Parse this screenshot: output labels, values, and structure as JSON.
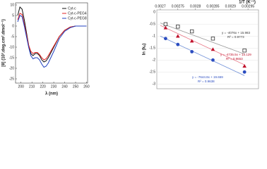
{
  "chart_data": [
    {
      "type": "line",
      "x_label": "λ (nm)",
      "y_label": "[θ] (10³.deg.cm².dmol⁻¹)",
      "x": [
        197,
        199,
        201,
        203,
        205,
        207,
        209,
        211,
        213,
        215,
        217,
        219,
        221,
        223,
        225,
        230,
        235,
        240,
        245,
        250,
        255,
        260
      ],
      "series": [
        {
          "name": "Cyt-c",
          "color": "#111111",
          "values": [
            5,
            9,
            8,
            3,
            -3,
            -9,
            -13,
            -14,
            -13,
            -13,
            -14,
            -16,
            -17,
            -16.5,
            -15,
            -10,
            -5,
            -2,
            -0.5,
            0,
            0,
            0
          ]
        },
        {
          "name": "Cyt-c-PEG4",
          "color": "#e02020",
          "values": [
            3,
            6,
            5.5,
            1,
            -4,
            -9,
            -12,
            -13,
            -12.5,
            -12.5,
            -13.5,
            -15,
            -16,
            -15.5,
            -14,
            -9.5,
            -5,
            -2,
            -0.5,
            0,
            0,
            0
          ]
        },
        {
          "name": "Cyt-c-PEG8",
          "color": "#2040c0",
          "values": [
            2,
            5,
            4.5,
            0,
            -5,
            -10,
            -14,
            -15.5,
            -15,
            -15,
            -16,
            -18,
            -19.5,
            -19,
            -17.5,
            -12,
            -6,
            -2.5,
            -0.8,
            0,
            0,
            0
          ]
        }
      ],
      "xlim": [
        195,
        261
      ],
      "xticks": [
        200,
        210,
        220,
        230,
        240,
        250,
        260
      ],
      "ylim": [
        -27,
        11
      ],
      "yticks": [
        10,
        5,
        0,
        -5,
        -10,
        -15,
        -20,
        -25
      ],
      "legend": "top-right"
    },
    {
      "type": "scatter",
      "x_label": "1/T (K⁻¹)",
      "y_label": "ln (kₒ)",
      "series": [
        {
          "color": "#333333",
          "marker": "square",
          "line_color": "#999999",
          "x": [
            0.002715,
            0.00275,
            0.00279,
            0.00285,
            0.00294
          ],
          "values": [
            -0.5,
            -0.6,
            -0.8,
            -1.1,
            -1.6
          ],
          "trend_x": [
            0.0027,
            0.00294
          ],
          "trend_values": [
            -0.45,
            -1.75
          ],
          "equation": "y = -4076x + 15.983",
          "r2": "R² = 0.9773"
        },
        {
          "color": "#c0102a",
          "marker": "triangle",
          "line_color": "#e87080",
          "x": [
            0.002715,
            0.00275,
            0.00279,
            0.00285,
            0.00294
          ],
          "values": [
            -0.65,
            -1.0,
            -1.2,
            -1.55,
            -2.25
          ],
          "trend_x": [
            0.0027,
            0.00294
          ],
          "trend_values": [
            -0.55,
            -2.2
          ],
          "equation": "y = -4735.5x + 13.129",
          "r2": "R² = 0.9653"
        },
        {
          "color": "#2a4cc0",
          "marker": "circle",
          "line_color": "#7090d8",
          "x": [
            0.002715,
            0.00275,
            0.00279,
            0.00285,
            0.00294
          ],
          "values": [
            -1.1,
            -1.35,
            -1.65,
            -2.0,
            -2.5
          ],
          "trend_x": [
            0.0027,
            0.00294
          ],
          "trend_values": [
            -1.0,
            -2.65
          ],
          "equation": "y = -7644.8x + 19.659",
          "r2": "R² = 0.9638"
        }
      ],
      "xlim": [
        0.00269,
        0.00298
      ],
      "xticks": [
        0.0027,
        0.00275,
        0.0028,
        0.00285,
        0.0029,
        0.00295
      ],
      "ylim": [
        -3.2,
        0.1
      ],
      "yticks": [
        0,
        -0.5,
        -1,
        -1.5,
        -2,
        -2.5,
        -3
      ]
    }
  ]
}
